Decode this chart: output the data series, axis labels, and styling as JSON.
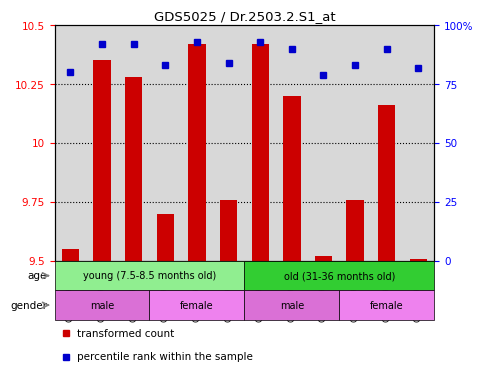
{
  "title": "GDS5025 / Dr.2503.2.S1_at",
  "samples": [
    "GSM1293346",
    "GSM1293348",
    "GSM1293349",
    "GSM1293351",
    "GSM1293354",
    "GSM1293356",
    "GSM1293350",
    "GSM1293352",
    "GSM1293357",
    "GSM1293347",
    "GSM1293353",
    "GSM1293355"
  ],
  "red_values": [
    9.55,
    10.35,
    10.28,
    9.7,
    10.42,
    9.76,
    10.42,
    10.2,
    9.52,
    9.76,
    10.16,
    9.51
  ],
  "blue_values": [
    80,
    92,
    92,
    83,
    93,
    84,
    93,
    90,
    79,
    83,
    90,
    82
  ],
  "ymin": 9.5,
  "ymax": 10.5,
  "y2min": 0,
  "y2max": 100,
  "yticks": [
    9.5,
    9.75,
    10.0,
    10.25,
    10.5
  ],
  "y2ticks": [
    0,
    25,
    50,
    75,
    100
  ],
  "ytick_labels": [
    "9.5",
    "9.75",
    "10",
    "10.25",
    "10.5"
  ],
  "y2tick_labels": [
    "0",
    "25",
    "50",
    "75",
    "100%"
  ],
  "age_groups": [
    {
      "label": "young (7.5-8.5 months old)",
      "start": 0,
      "end": 6,
      "color": "#90EE90"
    },
    {
      "label": "old (31-36 months old)",
      "start": 6,
      "end": 12,
      "color": "#32CD32"
    }
  ],
  "gender_groups": [
    {
      "label": "male",
      "start": 0,
      "end": 3,
      "color": "#DA70D6"
    },
    {
      "label": "female",
      "start": 3,
      "end": 6,
      "color": "#EE82EE"
    },
    {
      "label": "male",
      "start": 6,
      "end": 9,
      "color": "#DA70D6"
    },
    {
      "label": "female",
      "start": 9,
      "end": 12,
      "color": "#EE82EE"
    }
  ],
  "bar_color": "#CC0000",
  "marker_color": "#0000CC",
  "bar_width": 0.55,
  "plot_bg_color": "#d8d8d8",
  "age_young_color": "#90EE90",
  "age_old_color": "#32CD32",
  "gender_male_color": "#DA70D6",
  "gender_female_color": "#EE82EE"
}
